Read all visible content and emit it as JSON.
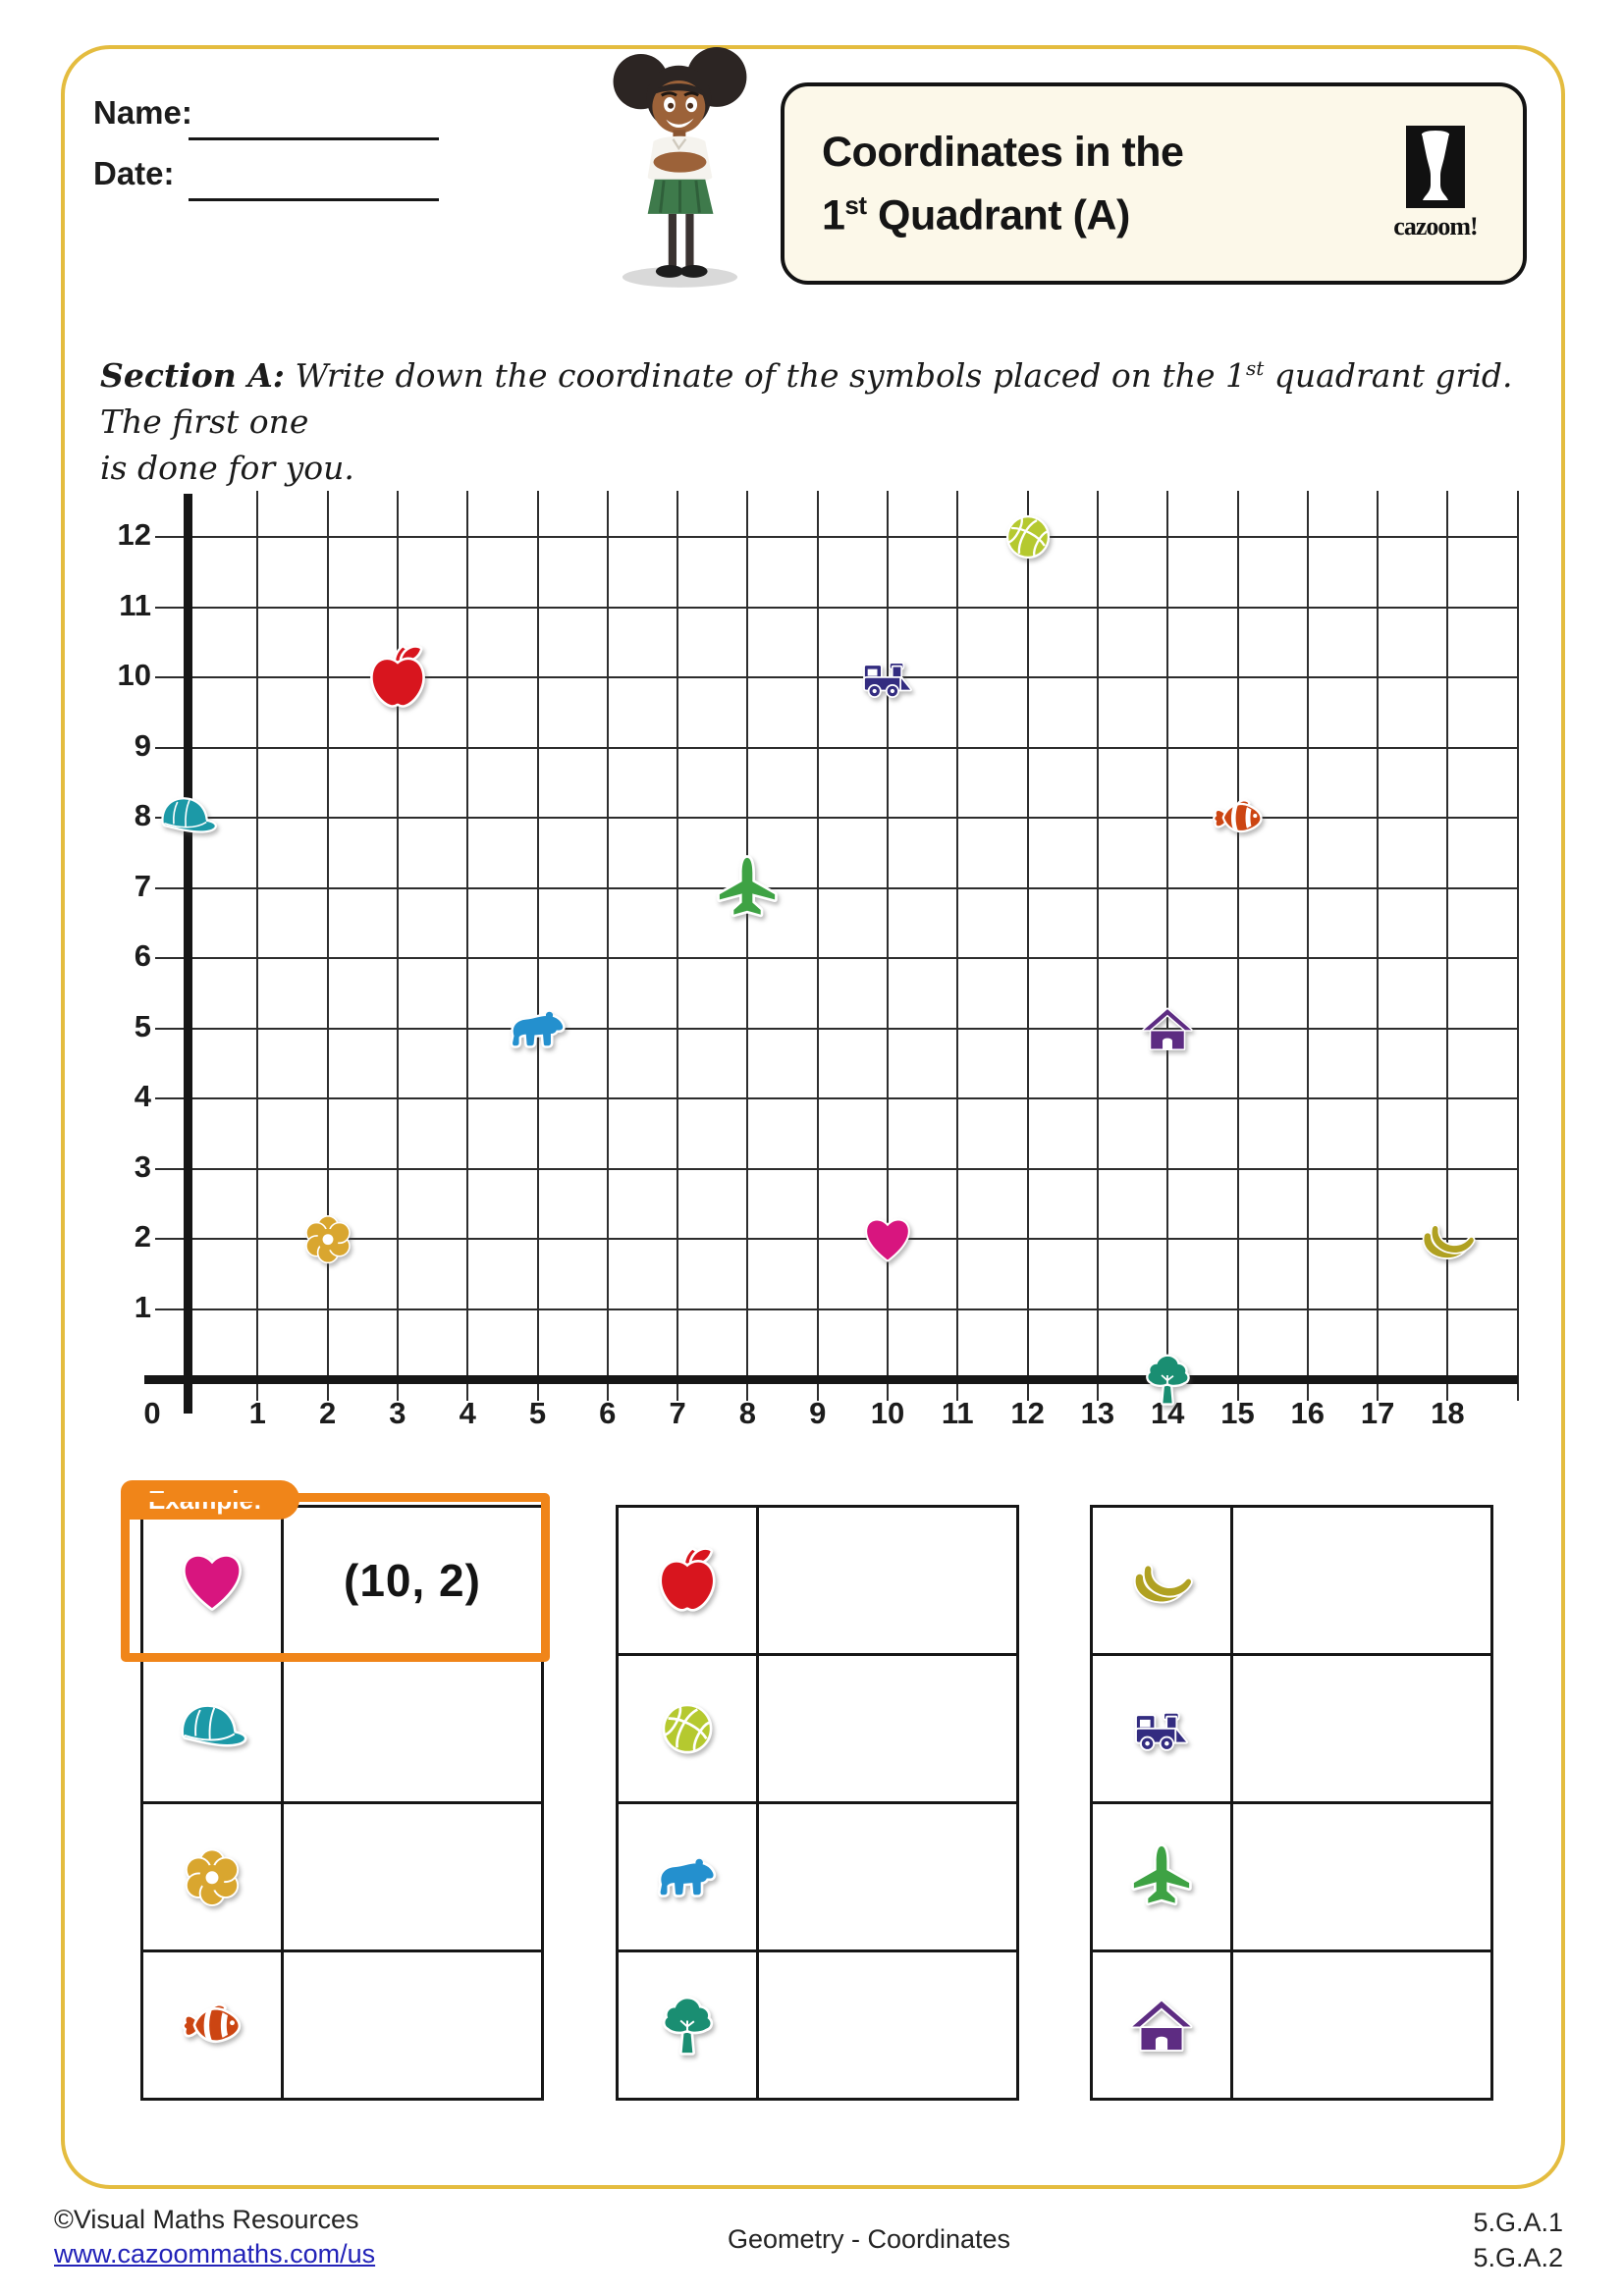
{
  "header": {
    "name_label": "Name:",
    "date_label": "Date:",
    "title_line1": "Coordinates in the",
    "title_line2_num": "1",
    "title_line2_sup": "st",
    "title_line2_rest": " Quadrant (A)",
    "logo_text": "cazoom!"
  },
  "section": {
    "label": "Section A:",
    "text_before_sup": "  Write down the coordinate of the symbols placed on the 1",
    "sup": "st",
    "text_after_sup": " quadrant grid. The first one",
    "text_line2": "is done for you."
  },
  "chart_data": {
    "type": "scatter",
    "title": "Coordinates in the 1st Quadrant (A)",
    "xlabel": "",
    "ylabel": "",
    "xlim": [
      0,
      18
    ],
    "ylim": [
      0,
      12
    ],
    "grid": true,
    "x_tick_labels": [
      "0",
      "1",
      "2",
      "3",
      "4",
      "5",
      "6",
      "7",
      "8",
      "9",
      "10",
      "11",
      "12",
      "13",
      "14",
      "15",
      "16",
      "17",
      "18"
    ],
    "y_tick_labels": [
      "1",
      "2",
      "3",
      "4",
      "5",
      "6",
      "7",
      "8",
      "9",
      "10",
      "11",
      "12"
    ],
    "points": [
      {
        "symbol": "cap",
        "x": 0,
        "y": 8,
        "color": "#1C99A7"
      },
      {
        "symbol": "flower",
        "x": 2,
        "y": 2,
        "color": "#D9A62F"
      },
      {
        "symbol": "apple",
        "x": 3,
        "y": 10,
        "color": "#D8151E"
      },
      {
        "symbol": "bear",
        "x": 5,
        "y": 5,
        "color": "#2490CE"
      },
      {
        "symbol": "airplane",
        "x": 8,
        "y": 7,
        "color": "#3EA244"
      },
      {
        "symbol": "heart",
        "x": 10,
        "y": 2,
        "color": "#D8157F"
      },
      {
        "symbol": "train",
        "x": 10,
        "y": 10,
        "color": "#332C80"
      },
      {
        "symbol": "basketball",
        "x": 12,
        "y": 12,
        "color": "#B5C92F"
      },
      {
        "symbol": "tree",
        "x": 14,
        "y": 0,
        "color": "#1A8E72"
      },
      {
        "symbol": "house",
        "x": 14,
        "y": 5,
        "color": "#5D2C82"
      },
      {
        "symbol": "fish",
        "x": 15,
        "y": 8,
        "color": "#CC4512"
      },
      {
        "symbol": "banana",
        "x": 18,
        "y": 2,
        "color": "#B0A122"
      }
    ]
  },
  "example": {
    "tab_label": "Example:",
    "answer": "(10, 2)"
  },
  "answer_tables": [
    {
      "rows": [
        {
          "symbol": "heart",
          "answer": "(10, 2)"
        },
        {
          "symbol": "cap",
          "answer": ""
        },
        {
          "symbol": "flower",
          "answer": ""
        },
        {
          "symbol": "fish",
          "answer": ""
        }
      ]
    },
    {
      "rows": [
        {
          "symbol": "apple",
          "answer": ""
        },
        {
          "symbol": "basketball",
          "answer": ""
        },
        {
          "symbol": "bear",
          "answer": ""
        },
        {
          "symbol": "tree",
          "answer": ""
        }
      ]
    },
    {
      "rows": [
        {
          "symbol": "banana",
          "answer": ""
        },
        {
          "symbol": "train",
          "answer": ""
        },
        {
          "symbol": "airplane",
          "answer": ""
        },
        {
          "symbol": "house",
          "answer": ""
        }
      ]
    }
  ],
  "footer": {
    "copyright": "©Visual Maths Resources",
    "url": "www.cazoommaths.com/us",
    "center": "Geometry - Coordinates",
    "standards_1": "5.G.A.1",
    "standards_2": "5.G.A.2"
  },
  "colors": {
    "page_border": "#E4BC3F",
    "example_orange": "#F08519",
    "link_blue": "#2222B8"
  }
}
